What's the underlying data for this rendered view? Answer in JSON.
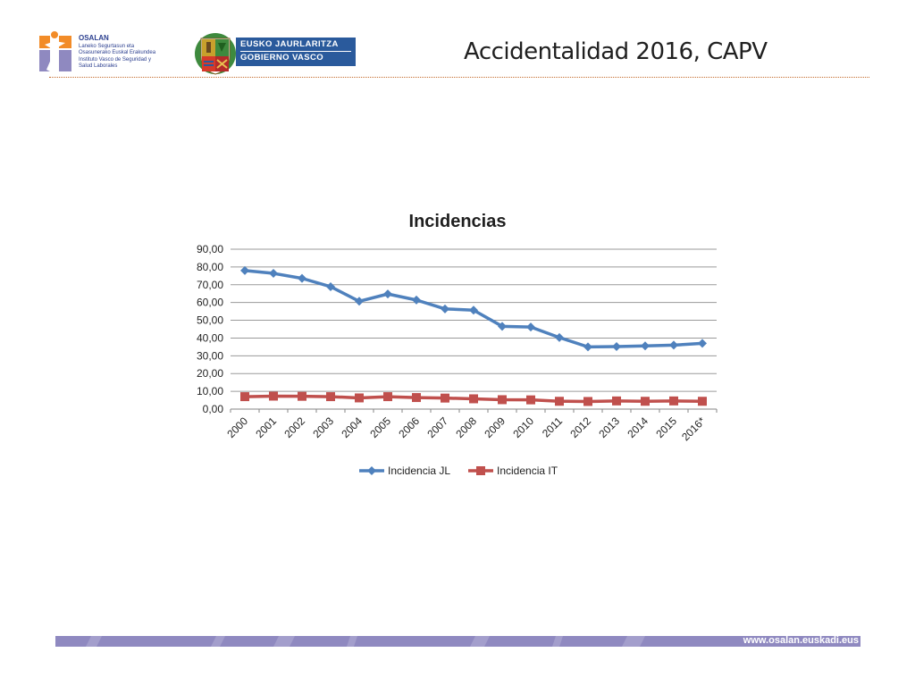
{
  "page": {
    "title": "Accidentalidad 2016, CAPV",
    "footer_url": "www.osalan.euskadi.eus"
  },
  "logos": {
    "osalan": {
      "name": "OSALAN",
      "lines": [
        "Laneko Segurtasun eta",
        "Osasunerako Euskal Erakundea",
        "Instituto Vasco de Seguridad y",
        "Salud Laborales"
      ]
    },
    "gobierno": {
      "line1": "EUSKO JAURLARITZA",
      "line2": "GOBIERNO VASCO"
    }
  },
  "colors": {
    "series_jl": "#4f81bd",
    "series_it": "#c0504d",
    "rule": "#c46a2a",
    "footer": "#8f89c0",
    "gv_blue": "#2a5a9c"
  },
  "chart_data": {
    "type": "line",
    "title": "Incidencias",
    "categories": [
      "2000",
      "2001",
      "2002",
      "2003",
      "2004",
      "2005",
      "2006",
      "2007",
      "2008",
      "2009",
      "2010",
      "2011",
      "2012",
      "2013",
      "2014",
      "2015",
      "2016*"
    ],
    "series": [
      {
        "name": "Incidencia JL",
        "marker": "diamond",
        "color": "#4f81bd",
        "values": [
          78.0,
          76.4,
          73.6,
          68.9,
          60.7,
          64.8,
          61.4,
          56.4,
          55.7,
          46.6,
          46.2,
          40.3,
          35.0,
          35.2,
          35.6,
          36.0,
          37.0
        ]
      },
      {
        "name": "Incidencia IT",
        "marker": "square",
        "color": "#c0504d",
        "values": [
          7.0,
          7.3,
          7.2,
          7.0,
          6.3,
          7.0,
          6.5,
          6.2,
          5.8,
          5.3,
          5.2,
          4.4,
          4.3,
          4.6,
          4.4,
          4.6,
          4.4
        ]
      }
    ],
    "y_ticks": [
      "0,00",
      "10,00",
      "20,00",
      "30,00",
      "40,00",
      "50,00",
      "60,00",
      "70,00",
      "80,00",
      "90,00"
    ],
    "ylim": [
      0,
      90
    ],
    "grid": true,
    "legend": "bottom"
  }
}
